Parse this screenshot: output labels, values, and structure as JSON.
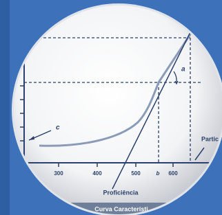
{
  "labels": {
    "c": "c",
    "a": "a",
    "b": "b",
    "partic": "Partic"
  },
  "axis": {
    "ticks": [
      "300",
      "400",
      "500",
      "600"
    ],
    "title": "Proficiência"
  },
  "caption": "Curva Característi"
}
